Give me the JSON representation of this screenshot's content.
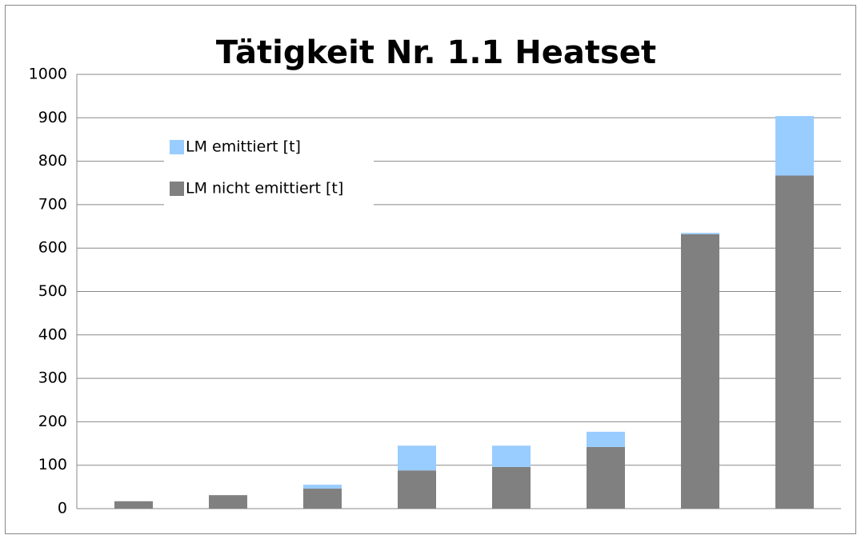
{
  "chart_data": {
    "type": "bar",
    "stacked": true,
    "title": "Tätigkeit Nr. 1.1 Heatset",
    "categories": [
      null,
      null,
      null,
      null,
      null,
      null,
      null,
      null
    ],
    "series": [
      {
        "name": "LM nicht emittiert [t]",
        "color": "#808080",
        "values": [
          17,
          31,
          46,
          88,
          96,
          142,
          632,
          767
        ]
      },
      {
        "name": "LM emittiert [t]",
        "color": "#99ccff",
        "values": [
          0,
          0,
          9,
          57,
          49,
          35,
          3,
          137
        ]
      }
    ],
    "ylim": [
      0,
      1000
    ],
    "yticks": [
      0,
      100,
      200,
      300,
      400,
      500,
      600,
      700,
      800,
      900,
      1000
    ],
    "grid": true,
    "legend": "upper left"
  }
}
